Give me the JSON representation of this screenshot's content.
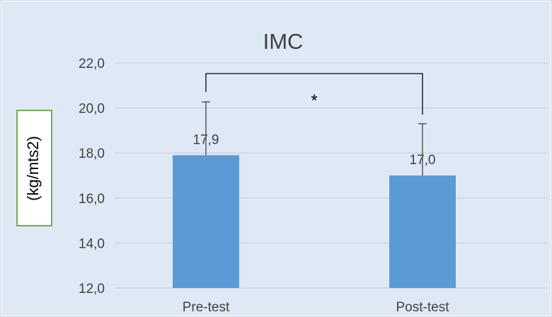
{
  "chart_data": {
    "type": "bar",
    "title": "IMC",
    "ylabel": "(kg/mts2)",
    "xlabel": "",
    "categories": [
      "Pre-test",
      "Post-test"
    ],
    "values": [
      17.9,
      17.0
    ],
    "value_labels": [
      "17,9",
      "17,0"
    ],
    "error_upper": [
      20.27,
      19.3
    ],
    "ylim": [
      12,
      22
    ],
    "yticks": [
      12,
      14,
      16,
      18,
      20,
      22
    ],
    "ytick_labels": [
      "12,0",
      "14,0",
      "16,0",
      "18,0",
      "20,0",
      "22,0"
    ],
    "significance": {
      "label": "*",
      "between": [
        0,
        1
      ]
    },
    "grid": true,
    "legend": "none"
  },
  "colors": {
    "background": "#dfe9f6",
    "bar": "#5b9bd5",
    "grid": "#c3cad4",
    "text": "#404040",
    "ylabel_border": "#70ad47"
  }
}
